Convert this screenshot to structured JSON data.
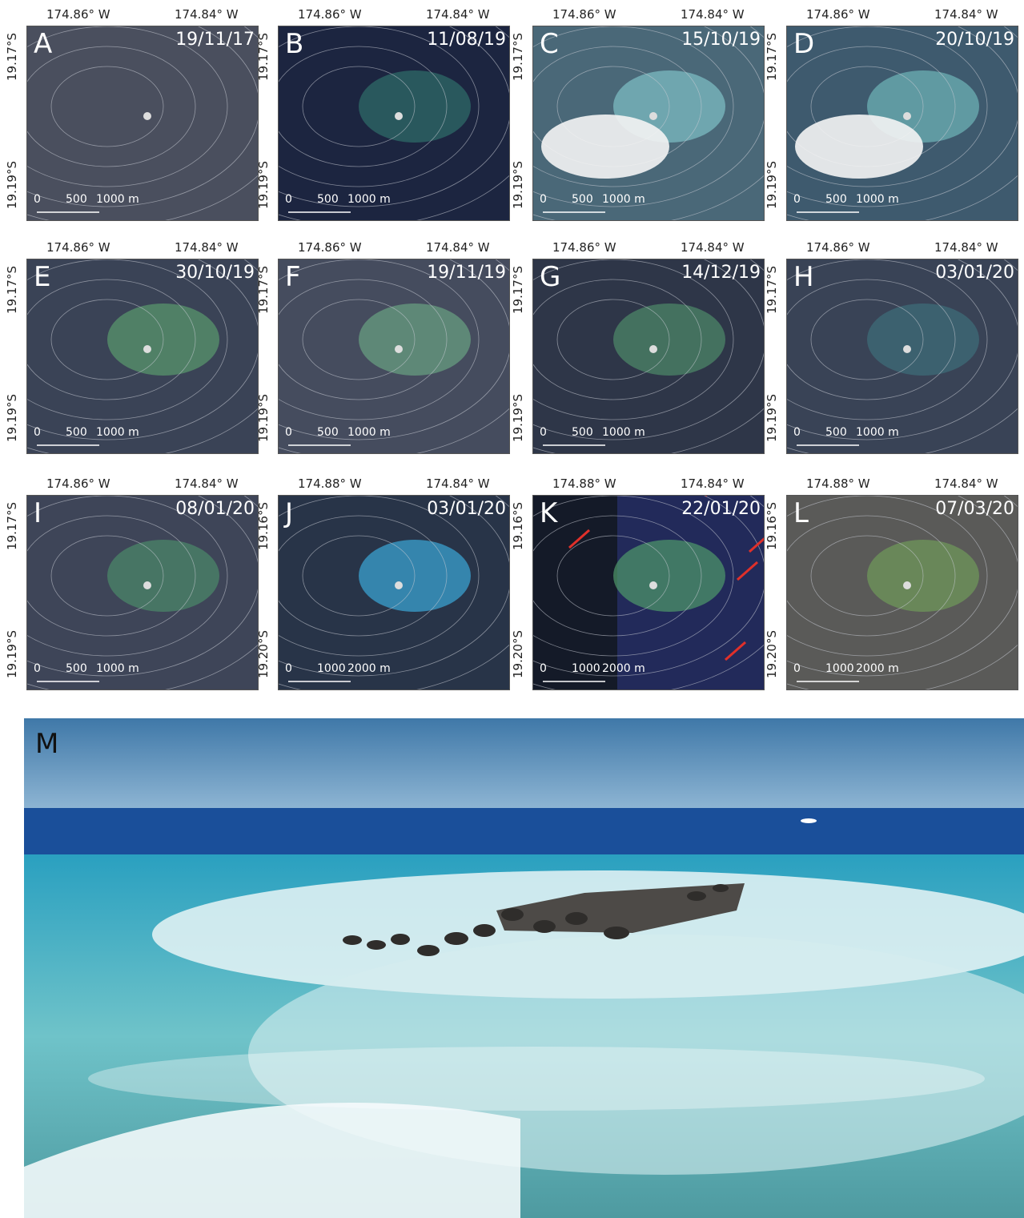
{
  "panels": [
    {
      "letter": "A",
      "date": "19/11/17",
      "lon_labels": [
        "174.86° W",
        "174.84° W"
      ],
      "lat_labels": [
        "19.17°S",
        "19.19°S"
      ],
      "scale_labels": [
        "0",
        "500",
        "1000 m"
      ]
    },
    {
      "letter": "B",
      "date": "11/08/19",
      "lon_labels": [
        "174.86° W",
        "174.84° W"
      ],
      "lat_labels": [
        "19.17°S",
        "19.19°S"
      ],
      "scale_labels": [
        "0",
        "500",
        "1000 m"
      ]
    },
    {
      "letter": "C",
      "date": "15/10/19",
      "lon_labels": [
        "174.86° W",
        "174.84° W"
      ],
      "lat_labels": [
        "19.17°S",
        "19.19°S"
      ],
      "scale_labels": [
        "0",
        "500",
        "1000 m"
      ]
    },
    {
      "letter": "D",
      "date": "20/10/19",
      "lon_labels": [
        "174.86° W",
        "174.84° W"
      ],
      "lat_labels": [
        "19.17°S",
        "19.19°S"
      ],
      "scale_labels": [
        "0",
        "500",
        "1000 m"
      ]
    },
    {
      "letter": "E",
      "date": "30/10/19",
      "lon_labels": [
        "174.86° W",
        "174.84° W"
      ],
      "lat_labels": [
        "19.17°S",
        "19.19°S"
      ],
      "scale_labels": [
        "0",
        "500",
        "1000 m"
      ]
    },
    {
      "letter": "F",
      "date": "19/11/19",
      "lon_labels": [
        "174.86° W",
        "174.84° W"
      ],
      "lat_labels": [
        "19.17°S",
        "19.19°S"
      ],
      "scale_labels": [
        "0",
        "500",
        "1000 m"
      ]
    },
    {
      "letter": "G",
      "date": "14/12/19",
      "lon_labels": [
        "174.86° W",
        "174.84° W"
      ],
      "lat_labels": [
        "19.17°S",
        "19.19°S"
      ],
      "scale_labels": [
        "0",
        "500",
        "1000 m"
      ]
    },
    {
      "letter": "H",
      "date": "03/01/20",
      "lon_labels": [
        "174.86° W",
        "174.84° W"
      ],
      "lat_labels": [
        "19.17°S",
        "19.19°S"
      ],
      "scale_labels": [
        "0",
        "500",
        "1000 m"
      ]
    },
    {
      "letter": "I",
      "date": "08/01/20",
      "lon_labels": [
        "174.86° W",
        "174.84° W"
      ],
      "lat_labels": [
        "19.17°S",
        "19.19°S"
      ],
      "scale_labels": [
        "0",
        "500",
        "1000 m"
      ]
    },
    {
      "letter": "J",
      "date": "03/01/20",
      "lon_labels": [
        "174.88° W",
        "174.84° W"
      ],
      "lat_labels": [
        "19.16°S",
        "19.20°S"
      ],
      "scale_labels": [
        "0",
        "1000",
        "2000 m"
      ]
    },
    {
      "letter": "K",
      "date": "22/01/20",
      "lon_labels": [
        "174.88° W",
        "174.84° W"
      ],
      "lat_labels": [
        "19.16°S",
        "19.20°S"
      ],
      "scale_labels": [
        "0",
        "1000",
        "2000 m"
      ]
    },
    {
      "letter": "L",
      "date": "07/03/20",
      "lon_labels": [
        "174.88° W",
        "174.84° W"
      ],
      "lat_labels": [
        "19.16°S",
        "19.20°S"
      ],
      "scale_labels": [
        "0",
        "1000",
        "2000 m"
      ]
    }
  ],
  "photo": {
    "letter": "M"
  }
}
